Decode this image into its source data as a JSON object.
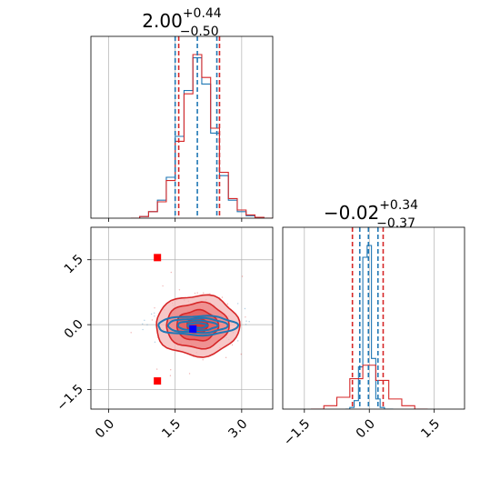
{
  "chart_data": [
    {
      "type": "histogram",
      "panel": "parameter-1-marginal",
      "title_main": "2.00",
      "title_sup": "+0.44",
      "title_sub": "−0.50",
      "xlim": [
        -0.4,
        3.7
      ],
      "series": [
        {
          "name": "",
          "color": "#1f77b4",
          "x": [
            0.6,
            0.8,
            1.0,
            1.2,
            1.4,
            1.6,
            1.8,
            2.0,
            2.2,
            2.4,
            2.6,
            2.8,
            3.0,
            3.2,
            3.4,
            3.6
          ],
          "counts": [
            0.0,
            0.01,
            0.04,
            0.11,
            0.25,
            0.5,
            0.78,
            0.98,
            0.82,
            0.52,
            0.26,
            0.11,
            0.04,
            0.015,
            0.005,
            0.0
          ],
          "lines": [
            1.5,
            2.0,
            2.44
          ],
          "line_style": "dashed"
        },
        {
          "name": "",
          "color": "#d62728",
          "x": [
            0.6,
            0.8,
            1.0,
            1.2,
            1.4,
            1.6,
            1.8,
            2.0,
            2.2,
            2.4,
            2.6,
            2.8,
            3.0,
            3.2,
            3.4,
            3.6
          ],
          "counts": [
            0.0,
            0.01,
            0.04,
            0.1,
            0.23,
            0.47,
            0.76,
            1.0,
            0.86,
            0.55,
            0.28,
            0.12,
            0.05,
            0.02,
            0.005,
            0.0
          ],
          "lines": [
            1.58,
            2.5
          ],
          "line_style": "dashed"
        }
      ]
    },
    {
      "type": "histogram",
      "panel": "parameter-2-marginal",
      "title_main": "−0.02",
      "title_sup": "+0.34",
      "title_sub": "−0.37",
      "xlim": [
        -2.0,
        2.2
      ],
      "xticks": [
        -1.5,
        0.0,
        1.5
      ],
      "xtick_labels": [
        "−1.5",
        "0.0",
        "1.5"
      ],
      "series": [
        {
          "name": "",
          "color": "#1f77b4",
          "x": [
            -0.5,
            -0.4,
            -0.3,
            -0.2,
            -0.1,
            0.0,
            0.1,
            0.2,
            0.3,
            0.4,
            0.5
          ],
          "counts": [
            0.0,
            0.01,
            0.05,
            0.25,
            0.9,
            0.97,
            0.3,
            0.06,
            0.01,
            0.0,
            0.0
          ],
          "lines": [
            -0.22,
            -0.02,
            0.2
          ],
          "line_style": "dashed"
        },
        {
          "name": "",
          "color": "#d62728",
          "x": [
            -1.2,
            -0.9,
            -0.6,
            -0.3,
            0.0,
            0.3,
            0.6,
            0.9,
            1.2
          ],
          "counts": [
            0.0,
            0.02,
            0.07,
            0.18,
            0.26,
            0.17,
            0.06,
            0.02,
            0.0
          ],
          "lines": [
            -0.39,
            0.32
          ],
          "line_style": "dashed"
        }
      ]
    },
    {
      "type": "contour",
      "panel": "joint-2d",
      "xlim": [
        -0.4,
        3.7
      ],
      "ylim": [
        -1.95,
        2.25
      ],
      "xticks": [
        0.0,
        1.5,
        3.0
      ],
      "xtick_labels": [
        "0.0",
        "1.5",
        "3.0"
      ],
      "yticks": [
        -1.5,
        0.0,
        1.5
      ],
      "ytick_labels": [
        "−1.5",
        "0.0",
        "1.5"
      ],
      "series": [
        {
          "name": "",
          "color": "#d62728",
          "center": [
            2.0,
            -0.02
          ],
          "sigma": [
            0.47,
            0.35
          ],
          "levels": [
            0.5,
            1.0,
            1.5,
            2.0
          ]
        },
        {
          "name": "",
          "color": "#1f77b4",
          "center": [
            2.0,
            -0.02
          ],
          "sigma": [
            0.45,
            0.11
          ],
          "levels": [
            0.5,
            1.0,
            1.5,
            2.0
          ]
        }
      ],
      "markers": [
        {
          "color": "#ff0000",
          "x": 1.1,
          "y": 1.55
        },
        {
          "color": "#ff0000",
          "x": 1.1,
          "y": -1.3
        },
        {
          "color": "#0000ff",
          "x": 1.9,
          "y": -0.1
        }
      ]
    }
  ],
  "colors": {
    "red": "#d62728",
    "blue": "#1f77b4",
    "grid": "#b0b0b0",
    "axes": "#000000"
  }
}
